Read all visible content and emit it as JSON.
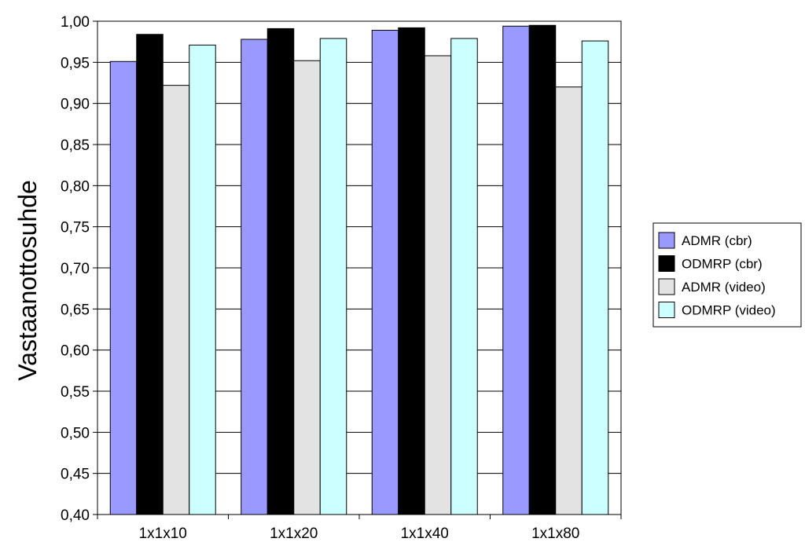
{
  "chart_data": {
    "type": "bar",
    "title": "",
    "xlabel": "",
    "ylabel": "Vastaanottosuhde",
    "ylim": [
      0.4,
      1.0
    ],
    "ytick_step": 0.05,
    "ytick_labels": [
      "0,40",
      "0,45",
      "0,50",
      "0,55",
      "0,60",
      "0,65",
      "0,70",
      "0,75",
      "0,80",
      "0,85",
      "0,90",
      "0,95",
      "1,00"
    ],
    "categories": [
      "1x1x10",
      "1x1x20",
      "1x1x40",
      "1x1x80"
    ],
    "series": [
      {
        "name": "ADMR (cbr)",
        "color": "#9999ff",
        "values": [
          0.951,
          0.978,
          0.989,
          0.994
        ]
      },
      {
        "name": "ODMRP (cbr)",
        "color": "#000000",
        "values": [
          0.984,
          0.991,
          0.992,
          0.995
        ]
      },
      {
        "name": "ADMR (video)",
        "color": "#e3e3e3",
        "values": [
          0.922,
          0.952,
          0.958,
          0.92
        ]
      },
      {
        "name": "ODMRP (video)",
        "color": "#ccffff",
        "values": [
          0.971,
          0.979,
          0.979,
          0.976
        ]
      }
    ],
    "grid": true,
    "legend_position": "right"
  }
}
